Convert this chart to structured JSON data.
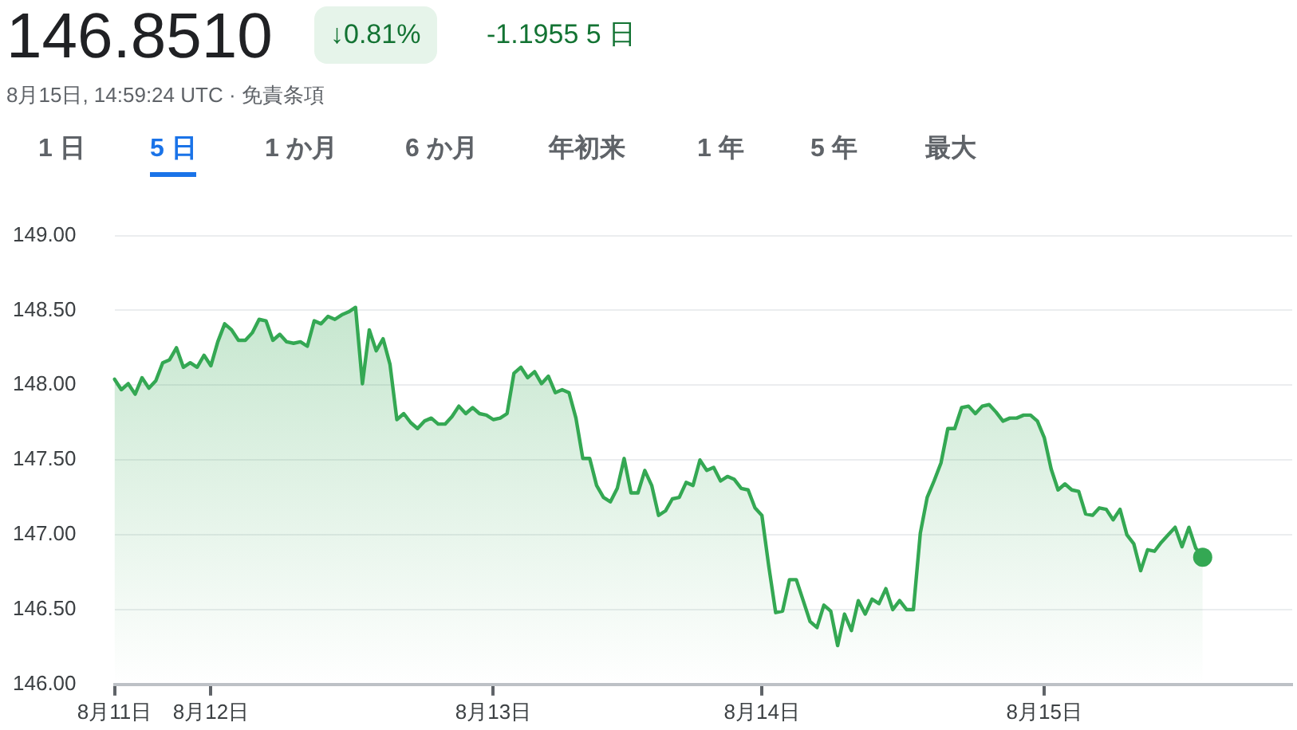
{
  "chart_data": {
    "type": "area",
    "title": "146.8510",
    "subtitle": "8月15日, 14:59:24 UTC · 免責条項",
    "annotations": [
      "↓0.81%",
      "-1.1955 5 日",
      "1 日",
      "5 日",
      "1 か月",
      "6 か月",
      "年初来",
      "1 年",
      "5 年",
      "最大"
    ],
    "categories": [
      "8月11日",
      null,
      null,
      null,
      null,
      null,
      null,
      null,
      null,
      null,
      null,
      null,
      null,
      null,
      "8月12日",
      null,
      null,
      null,
      null,
      null,
      null,
      null,
      null,
      null,
      null,
      null,
      null,
      null,
      null,
      null,
      null,
      null,
      null,
      null,
      null,
      null,
      null,
      null,
      null,
      null,
      null,
      null,
      null,
      null,
      null,
      null,
      null,
      null,
      null,
      null,
      null,
      null,
      null,
      null,
      null,
      "8月13日",
      null,
      null,
      null,
      null,
      null,
      null,
      null,
      null,
      null,
      null,
      null,
      null,
      null,
      null,
      null,
      null,
      null,
      null,
      null,
      null,
      null,
      null,
      null,
      null,
      null,
      null,
      null,
      null,
      null,
      null,
      null,
      null,
      null,
      null,
      null,
      null,
      null,
      null,
      "8月14日",
      null,
      null,
      null,
      null,
      null,
      null,
      null,
      null,
      null,
      null,
      null,
      null,
      null,
      null,
      null,
      null,
      null,
      null,
      null,
      null,
      null,
      null,
      null,
      null,
      null,
      null,
      null,
      null,
      null,
      null,
      null,
      null,
      null,
      null,
      null,
      null,
      null,
      null,
      null,
      null,
      "8月15日",
      null,
      null,
      null,
      null,
      null,
      null,
      null,
      null,
      null,
      null,
      null,
      null,
      null,
      null,
      null,
      null,
      null,
      null,
      null,
      null,
      null,
      null,
      null,
      null,
      null,
      null,
      null,
      null,
      null,
      null,
      null,
      null,
      null,
      null,
      null,
      null
    ],
    "series": [
      {
        "color": "#34a853",
        "values": [
          148.04,
          147.97,
          148.01,
          147.94,
          148.05,
          147.98,
          148.03,
          148.15,
          148.17,
          148.25,
          148.12,
          148.15,
          148.12,
          148.2,
          148.13,
          148.29,
          148.41,
          148.37,
          148.3,
          148.3,
          148.35,
          148.44,
          148.43,
          148.3,
          148.34,
          148.29,
          148.28,
          148.29,
          148.26,
          148.43,
          148.41,
          148.46,
          148.44,
          148.47,
          148.49,
          148.52,
          148.01,
          148.37,
          148.23,
          148.31,
          148.14,
          147.77,
          147.81,
          147.75,
          147.71,
          147.76,
          147.78,
          147.74,
          147.74,
          147.79,
          147.86,
          147.81,
          147.85,
          147.81,
          147.8,
          147.77,
          147.78,
          147.81,
          148.08,
          148.12,
          148.05,
          148.09,
          148.01,
          148.06,
          147.95,
          147.97,
          147.95,
          147.78,
          147.51,
          147.51,
          147.33,
          147.25,
          147.22,
          147.31,
          147.51,
          147.28,
          147.28,
          147.43,
          147.33,
          147.13,
          147.16,
          147.24,
          147.25,
          147.35,
          147.33,
          147.5,
          147.43,
          147.45,
          147.36,
          147.39,
          147.37,
          147.31,
          147.3,
          147.18,
          147.13,
          146.79,
          146.48,
          146.49,
          146.7,
          146.7,
          146.56,
          146.42,
          146.38,
          146.53,
          146.49,
          146.26,
          146.47,
          146.36,
          146.56,
          146.47,
          146.57,
          146.54,
          146.64,
          146.5,
          146.56,
          146.5,
          146.5,
          147.01,
          147.25,
          147.36,
          147.48,
          147.71,
          147.71,
          147.85,
          147.86,
          147.81,
          147.86,
          147.87,
          147.82,
          147.76,
          147.78,
          147.78,
          147.8,
          147.8,
          147.76,
          147.65,
          147.44,
          147.3,
          147.34,
          147.3,
          147.29,
          147.14,
          147.13,
          147.18,
          147.17,
          147.1,
          147.17,
          147.0,
          146.94,
          146.76,
          146.9,
          146.89,
          146.95,
          147.0,
          147.05,
          146.92,
          147.05,
          146.91,
          146.85,
          null,
          null,
          null,
          null,
          null,
          null,
          null,
          null,
          null,
          null,
          null,
          null,
          null
        ]
      }
    ],
    "ylim": [
      146,
      149
    ],
    "yticks": [
      {
        "value": 146,
        "label": "146.00"
      },
      {
        "value": 146.5,
        "label": "146.50"
      },
      {
        "value": 147,
        "label": "147.00"
      },
      {
        "value": 147.5,
        "label": "147.50"
      },
      {
        "value": 148,
        "label": "148.00"
      },
      {
        "value": 148.5,
        "label": "148.50"
      },
      {
        "value": 149,
        "label": "149.00"
      }
    ],
    "grid": "y",
    "legend": false,
    "marker": "none",
    "line_style": "solid"
  }
}
